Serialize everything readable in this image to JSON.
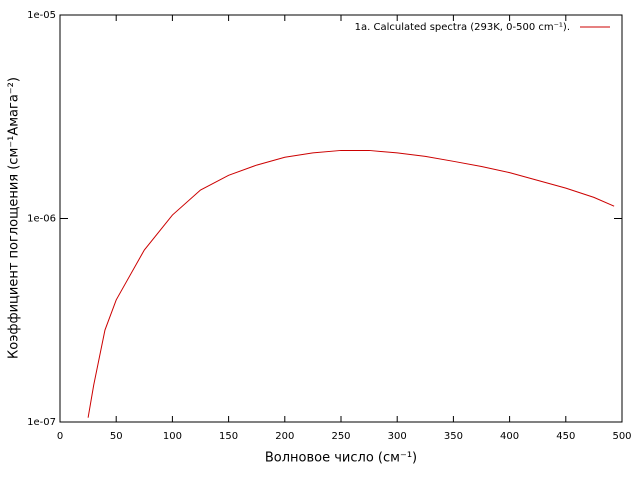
{
  "chart_data": {
    "type": "line",
    "xlabel": "Волновое число (см⁻¹)",
    "ylabel": "Коэффициент поглощения (см⁻¹Амага⁻²)",
    "x": [
      25,
      30,
      40,
      50,
      60,
      75,
      100,
      125,
      150,
      175,
      200,
      225,
      250,
      275,
      300,
      325,
      350,
      375,
      400,
      425,
      450,
      475,
      493
    ],
    "series": [
      {
        "name": "1a. Calculated spectra (293K, 0-500 cm⁻¹).",
        "color": "#cc0000",
        "values": [
          1.05e-07,
          1.52e-07,
          2.83e-07,
          3.98e-07,
          4.99e-07,
          7e-07,
          1.04e-06,
          1.38e-06,
          1.63e-06,
          1.83e-06,
          2e-06,
          2.1e-06,
          2.16e-06,
          2.16e-06,
          2.1e-06,
          2.02e-06,
          1.91e-06,
          1.8e-06,
          1.68e-06,
          1.54e-06,
          1.41e-06,
          1.27e-06,
          1.15e-06
        ]
      }
    ],
    "xlim": [
      0,
      500
    ],
    "xticks": [
      0,
      50,
      100,
      150,
      200,
      250,
      300,
      350,
      400,
      450,
      500
    ],
    "ylim": [
      1e-07,
      1e-05
    ],
    "yticks": [
      {
        "value": 1e-07,
        "label": "1e-07"
      },
      {
        "value": 1e-06,
        "label": "1e-06"
      },
      {
        "value": 1e-05,
        "label": "1e-05"
      }
    ],
    "log_y": true,
    "grid": false,
    "legend": "top-right"
  }
}
